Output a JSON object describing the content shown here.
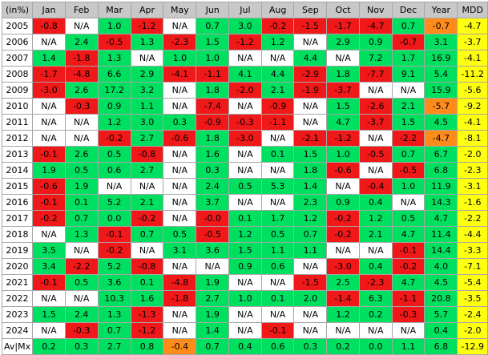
{
  "table": {
    "headers": [
      "(in%)",
      "Jan",
      "Feb",
      "Mar",
      "Apr",
      "May",
      "Jun",
      "Jul",
      "Aug",
      "Sep",
      "Oct",
      "Nov",
      "Dec",
      "Year",
      "MDD"
    ],
    "colors": {
      "g": "#00e060",
      "r": "#f01818",
      "w": "#ffffff",
      "o": "#ff8c1a",
      "y": "#ffff10",
      "gy": "#d0d0d0"
    },
    "rows": [
      {
        "label": "2005",
        "cells": [
          [
            "-0.8",
            "r"
          ],
          [
            "N/A",
            "w"
          ],
          [
            "1.0",
            "g"
          ],
          [
            "-1.2",
            "r"
          ],
          [
            "N/A",
            "w"
          ],
          [
            "0.7",
            "g"
          ],
          [
            "3.0",
            "g"
          ],
          [
            "-0.2",
            "r"
          ],
          [
            "-1.5",
            "r"
          ],
          [
            "-1.7",
            "r"
          ],
          [
            "-4.7",
            "r"
          ],
          [
            "0.7",
            "g"
          ],
          [
            "-0.7",
            "o"
          ],
          [
            "-4.7",
            "y"
          ]
        ]
      },
      {
        "label": "2006",
        "cells": [
          [
            "N/A",
            "w"
          ],
          [
            "2.4",
            "g"
          ],
          [
            "-0.5",
            "r"
          ],
          [
            "1.3",
            "g"
          ],
          [
            "-2.3",
            "r"
          ],
          [
            "1.5",
            "g"
          ],
          [
            "-1.2",
            "r"
          ],
          [
            "1.2",
            "g"
          ],
          [
            "N/A",
            "w"
          ],
          [
            "2.9",
            "g"
          ],
          [
            "0.9",
            "g"
          ],
          [
            "-0.7",
            "r"
          ],
          [
            "3.1",
            "g"
          ],
          [
            "-3.7",
            "y"
          ]
        ]
      },
      {
        "label": "2007",
        "cells": [
          [
            "1.4",
            "g"
          ],
          [
            "-1.8",
            "r"
          ],
          [
            "1.3",
            "g"
          ],
          [
            "N/A",
            "w"
          ],
          [
            "1.0",
            "g"
          ],
          [
            "1.0",
            "g"
          ],
          [
            "N/A",
            "w"
          ],
          [
            "N/A",
            "w"
          ],
          [
            "4.4",
            "g"
          ],
          [
            "N/A",
            "w"
          ],
          [
            "7.2",
            "g"
          ],
          [
            "1.7",
            "g"
          ],
          [
            "16.9",
            "g"
          ],
          [
            "-4.1",
            "y"
          ]
        ]
      },
      {
        "label": "2008",
        "cells": [
          [
            "-1.7",
            "r"
          ],
          [
            "-4.8",
            "r"
          ],
          [
            "6.6",
            "g"
          ],
          [
            "2.9",
            "g"
          ],
          [
            "-4.1",
            "r"
          ],
          [
            "-1.1",
            "r"
          ],
          [
            "4.1",
            "g"
          ],
          [
            "4.4",
            "g"
          ],
          [
            "-2.9",
            "r"
          ],
          [
            "1.8",
            "g"
          ],
          [
            "-7.7",
            "r"
          ],
          [
            "9.1",
            "g"
          ],
          [
            "5.4",
            "g"
          ],
          [
            "-11.2",
            "y"
          ]
        ]
      },
      {
        "label": "2009",
        "cells": [
          [
            "-3.0",
            "r"
          ],
          [
            "2.6",
            "g"
          ],
          [
            "17.2",
            "g"
          ],
          [
            "3.2",
            "g"
          ],
          [
            "N/A",
            "w"
          ],
          [
            "1.8",
            "g"
          ],
          [
            "-2.0",
            "r"
          ],
          [
            "2.1",
            "g"
          ],
          [
            "-1.9",
            "r"
          ],
          [
            "-3.7",
            "r"
          ],
          [
            "N/A",
            "w"
          ],
          [
            "N/A",
            "w"
          ],
          [
            "15.9",
            "g"
          ],
          [
            "-5.6",
            "y"
          ]
        ]
      },
      {
        "label": "2010",
        "cells": [
          [
            "N/A",
            "w"
          ],
          [
            "-0.3",
            "r"
          ],
          [
            "0.9",
            "g"
          ],
          [
            "1.1",
            "g"
          ],
          [
            "N/A",
            "w"
          ],
          [
            "-7.4",
            "r"
          ],
          [
            "N/A",
            "w"
          ],
          [
            "-0.9",
            "r"
          ],
          [
            "N/A",
            "w"
          ],
          [
            "1.5",
            "g"
          ],
          [
            "-2.6",
            "r"
          ],
          [
            "2.1",
            "g"
          ],
          [
            "-5.7",
            "o"
          ],
          [
            "-9.2",
            "y"
          ]
        ]
      },
      {
        "label": "2011",
        "cells": [
          [
            "N/A",
            "w"
          ],
          [
            "N/A",
            "w"
          ],
          [
            "1.2",
            "g"
          ],
          [
            "3.0",
            "g"
          ],
          [
            "0.3",
            "g"
          ],
          [
            "-0.9",
            "r"
          ],
          [
            "-0.3",
            "r"
          ],
          [
            "-1.1",
            "r"
          ],
          [
            "N/A",
            "w"
          ],
          [
            "4.7",
            "g"
          ],
          [
            "-3.7",
            "r"
          ],
          [
            "1.5",
            "g"
          ],
          [
            "4.5",
            "g"
          ],
          [
            "-4.1",
            "y"
          ]
        ]
      },
      {
        "label": "2012",
        "cells": [
          [
            "N/A",
            "w"
          ],
          [
            "N/A",
            "w"
          ],
          [
            "-0.2",
            "r"
          ],
          [
            "2.7",
            "g"
          ],
          [
            "-0.6",
            "r"
          ],
          [
            "1.8",
            "g"
          ],
          [
            "-3.0",
            "r"
          ],
          [
            "N/A",
            "w"
          ],
          [
            "-2.1",
            "r"
          ],
          [
            "-1.2",
            "r"
          ],
          [
            "N/A",
            "w"
          ],
          [
            "-2.2",
            "r"
          ],
          [
            "-4.7",
            "o"
          ],
          [
            "-8.1",
            "y"
          ]
        ]
      },
      {
        "label": "2013",
        "cells": [
          [
            "-0.1",
            "r"
          ],
          [
            "2.6",
            "g"
          ],
          [
            "0.5",
            "g"
          ],
          [
            "-0.8",
            "r"
          ],
          [
            "N/A",
            "w"
          ],
          [
            "1.6",
            "g"
          ],
          [
            "N/A",
            "w"
          ],
          [
            "0.1",
            "g"
          ],
          [
            "1.5",
            "g"
          ],
          [
            "1.0",
            "g"
          ],
          [
            "-0.5",
            "r"
          ],
          [
            "0.7",
            "g"
          ],
          [
            "6.7",
            "g"
          ],
          [
            "-2.0",
            "y"
          ]
        ]
      },
      {
        "label": "2014",
        "cells": [
          [
            "1.9",
            "g"
          ],
          [
            "0.5",
            "g"
          ],
          [
            "0.6",
            "g"
          ],
          [
            "2.7",
            "g"
          ],
          [
            "N/A",
            "w"
          ],
          [
            "0.3",
            "g"
          ],
          [
            "N/A",
            "w"
          ],
          [
            "N/A",
            "w"
          ],
          [
            "1.8",
            "g"
          ],
          [
            "-0.6",
            "r"
          ],
          [
            "N/A",
            "w"
          ],
          [
            "-0.5",
            "r"
          ],
          [
            "6.8",
            "g"
          ],
          [
            "-2.3",
            "y"
          ]
        ]
      },
      {
        "label": "2015",
        "cells": [
          [
            "-0.6",
            "r"
          ],
          [
            "1.9",
            "g"
          ],
          [
            "N/A",
            "w"
          ],
          [
            "N/A",
            "w"
          ],
          [
            "N/A",
            "w"
          ],
          [
            "2.4",
            "g"
          ],
          [
            "0.5",
            "g"
          ],
          [
            "5.3",
            "g"
          ],
          [
            "1.4",
            "g"
          ],
          [
            "N/A",
            "w"
          ],
          [
            "-0.4",
            "r"
          ],
          [
            "1.0",
            "g"
          ],
          [
            "11.9",
            "g"
          ],
          [
            "-3.1",
            "y"
          ]
        ]
      },
      {
        "label": "2016",
        "cells": [
          [
            "-0.1",
            "r"
          ],
          [
            "0.1",
            "g"
          ],
          [
            "5.2",
            "g"
          ],
          [
            "2.1",
            "g"
          ],
          [
            "N/A",
            "w"
          ],
          [
            "3.7",
            "g"
          ],
          [
            "N/A",
            "w"
          ],
          [
            "N/A",
            "w"
          ],
          [
            "2.3",
            "g"
          ],
          [
            "0.9",
            "g"
          ],
          [
            "0.4",
            "g"
          ],
          [
            "N/A",
            "w"
          ],
          [
            "14.3",
            "g"
          ],
          [
            "-1.6",
            "y"
          ]
        ]
      },
      {
        "label": "2017",
        "cells": [
          [
            "-0.2",
            "r"
          ],
          [
            "0.7",
            "g"
          ],
          [
            "0.0",
            "g"
          ],
          [
            "-0.2",
            "r"
          ],
          [
            "N/A",
            "w"
          ],
          [
            "-0.0",
            "r"
          ],
          [
            "0.1",
            "g"
          ],
          [
            "1.7",
            "g"
          ],
          [
            "1.2",
            "g"
          ],
          [
            "-0.2",
            "r"
          ],
          [
            "1.2",
            "g"
          ],
          [
            "0.5",
            "g"
          ],
          [
            "4.7",
            "g"
          ],
          [
            "-2.2",
            "y"
          ]
        ]
      },
      {
        "label": "2018",
        "cells": [
          [
            "N/A",
            "w"
          ],
          [
            "1.3",
            "g"
          ],
          [
            "-0.1",
            "r"
          ],
          [
            "0.7",
            "g"
          ],
          [
            "0.5",
            "g"
          ],
          [
            "-0.5",
            "r"
          ],
          [
            "1.2",
            "g"
          ],
          [
            "0.5",
            "g"
          ],
          [
            "0.7",
            "g"
          ],
          [
            "-0.2",
            "r"
          ],
          [
            "2.1",
            "g"
          ],
          [
            "4.7",
            "g"
          ],
          [
            "11.4",
            "g"
          ],
          [
            "-4.4",
            "y"
          ]
        ]
      },
      {
        "label": "2019",
        "cells": [
          [
            "3.5",
            "g"
          ],
          [
            "N/A",
            "w"
          ],
          [
            "-0.2",
            "r"
          ],
          [
            "N/A",
            "w"
          ],
          [
            "3.1",
            "g"
          ],
          [
            "3.6",
            "g"
          ],
          [
            "1.5",
            "g"
          ],
          [
            "1.1",
            "g"
          ],
          [
            "1.1",
            "g"
          ],
          [
            "N/A",
            "w"
          ],
          [
            "N/A",
            "w"
          ],
          [
            "-0.1",
            "r"
          ],
          [
            "14.4",
            "g"
          ],
          [
            "-3.3",
            "y"
          ]
        ]
      },
      {
        "label": "2020",
        "cells": [
          [
            "3.4",
            "g"
          ],
          [
            "-2.2",
            "r"
          ],
          [
            "5.2",
            "g"
          ],
          [
            "-0.8",
            "r"
          ],
          [
            "N/A",
            "w"
          ],
          [
            "N/A",
            "w"
          ],
          [
            "0.9",
            "g"
          ],
          [
            "0.6",
            "g"
          ],
          [
            "N/A",
            "w"
          ],
          [
            "-3.0",
            "r"
          ],
          [
            "0.4",
            "g"
          ],
          [
            "-0.2",
            "r"
          ],
          [
            "4.0",
            "g"
          ],
          [
            "-7.1",
            "y"
          ]
        ]
      },
      {
        "label": "2021",
        "cells": [
          [
            "-0.1",
            "r"
          ],
          [
            "0.5",
            "g"
          ],
          [
            "3.6",
            "g"
          ],
          [
            "0.1",
            "g"
          ],
          [
            "-4.8",
            "r"
          ],
          [
            "1.9",
            "g"
          ],
          [
            "N/A",
            "w"
          ],
          [
            "N/A",
            "w"
          ],
          [
            "-1.5",
            "r"
          ],
          [
            "2.5",
            "g"
          ],
          [
            "-2.3",
            "r"
          ],
          [
            "4.7",
            "g"
          ],
          [
            "4.5",
            "g"
          ],
          [
            "-5.4",
            "y"
          ]
        ]
      },
      {
        "label": "2022",
        "cells": [
          [
            "N/A",
            "w"
          ],
          [
            "N/A",
            "w"
          ],
          [
            "10.3",
            "g"
          ],
          [
            "1.6",
            "g"
          ],
          [
            "-1.8",
            "r"
          ],
          [
            "2.7",
            "g"
          ],
          [
            "1.0",
            "g"
          ],
          [
            "0.1",
            "g"
          ],
          [
            "2.0",
            "g"
          ],
          [
            "-1.4",
            "r"
          ],
          [
            "6.3",
            "g"
          ],
          [
            "-1.1",
            "r"
          ],
          [
            "20.8",
            "g"
          ],
          [
            "-3.5",
            "y"
          ]
        ]
      },
      {
        "label": "2023",
        "cells": [
          [
            "1.5",
            "g"
          ],
          [
            "2.4",
            "g"
          ],
          [
            "1.3",
            "g"
          ],
          [
            "-1.3",
            "r"
          ],
          [
            "N/A",
            "w"
          ],
          [
            "1.9",
            "g"
          ],
          [
            "N/A",
            "w"
          ],
          [
            "N/A",
            "w"
          ],
          [
            "N/A",
            "w"
          ],
          [
            "1.2",
            "g"
          ],
          [
            "0.2",
            "g"
          ],
          [
            "-0.3",
            "r"
          ],
          [
            "5.7",
            "g"
          ],
          [
            "-2.4",
            "y"
          ]
        ]
      },
      {
        "label": "2024",
        "cells": [
          [
            "N/A",
            "w"
          ],
          [
            "-0.3",
            "r"
          ],
          [
            "0.7",
            "g"
          ],
          [
            "-1.2",
            "r"
          ],
          [
            "N/A",
            "w"
          ],
          [
            "1.4",
            "g"
          ],
          [
            "N/A",
            "w"
          ],
          [
            "-0.1",
            "r"
          ],
          [
            "N/A",
            "w"
          ],
          [
            "N/A",
            "w"
          ],
          [
            "N/A",
            "w"
          ],
          [
            "N/A",
            "w"
          ],
          [
            "0.4",
            "g"
          ],
          [
            "-2.0",
            "y"
          ]
        ]
      },
      {
        "label": "Av|Mx",
        "cells": [
          [
            "0.2",
            "g"
          ],
          [
            "0.3",
            "g"
          ],
          [
            "2.7",
            "g"
          ],
          [
            "0.8",
            "g"
          ],
          [
            "-0.4",
            "o"
          ],
          [
            "0.7",
            "g"
          ],
          [
            "0.4",
            "g"
          ],
          [
            "0.6",
            "g"
          ],
          [
            "0.3",
            "g"
          ],
          [
            "0.2",
            "g"
          ],
          [
            "0.0",
            "g"
          ],
          [
            "1.1",
            "g"
          ],
          [
            "6.8",
            "g"
          ],
          [
            "-12.9",
            "y"
          ]
        ]
      }
    ]
  }
}
